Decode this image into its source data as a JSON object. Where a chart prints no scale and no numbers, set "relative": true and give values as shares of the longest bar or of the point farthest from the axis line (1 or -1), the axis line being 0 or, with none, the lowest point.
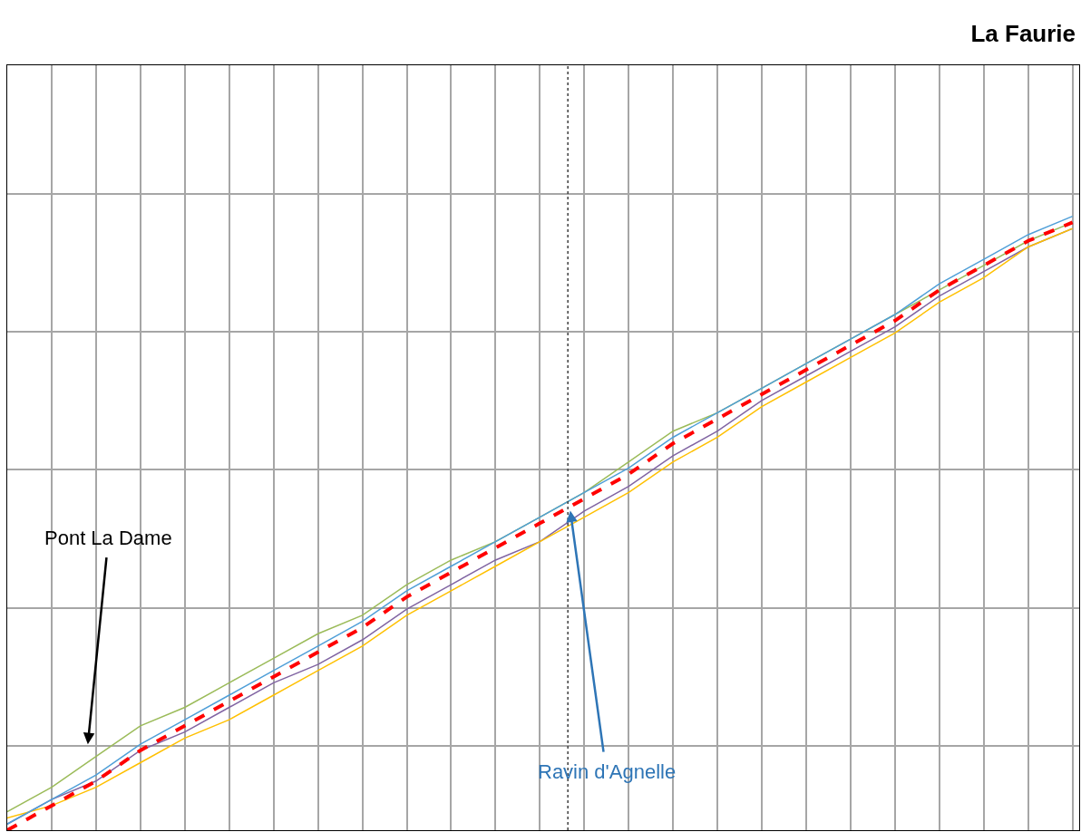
{
  "chart_data": {
    "type": "line",
    "title": "La Faurie",
    "relative": true,
    "categories": [
      null,
      null,
      null,
      null,
      null,
      null,
      null,
      null,
      null,
      null,
      null,
      null,
      null,
      null,
      null,
      null,
      null,
      null,
      null,
      null,
      null,
      null,
      null,
      null,
      null
    ],
    "series": [
      {
        "color": "#9bbb59",
        "values": [
          0.03,
          0.07,
          0.12,
          0.17,
          0.2,
          0.24,
          0.28,
          0.32,
          0.35,
          0.4,
          0.44,
          0.47,
          0.51,
          0.55,
          0.6,
          0.65,
          0.68,
          0.72,
          0.76,
          0.8,
          0.84,
          0.88,
          0.92,
          0.96,
          0.99
        ]
      },
      {
        "color": "#8064a2",
        "values": [
          0.01,
          0.05,
          0.08,
          0.13,
          0.16,
          0.2,
          0.24,
          0.27,
          0.31,
          0.36,
          0.4,
          0.44,
          0.47,
          0.52,
          0.56,
          0.61,
          0.65,
          0.7,
          0.74,
          0.78,
          0.82,
          0.87,
          0.91,
          0.95,
          0.98
        ]
      },
      {
        "color": "#ffc000",
        "values": [
          0.02,
          0.04,
          0.07,
          0.11,
          0.15,
          0.18,
          0.22,
          0.26,
          0.3,
          0.35,
          0.39,
          0.43,
          0.47,
          0.51,
          0.55,
          0.6,
          0.64,
          0.69,
          0.73,
          0.77,
          0.81,
          0.86,
          0.9,
          0.95,
          0.98
        ]
      },
      {
        "color": "#4f9fd8",
        "values": [
          0.01,
          0.05,
          0.09,
          0.14,
          0.18,
          0.22,
          0.26,
          0.3,
          0.34,
          0.39,
          0.43,
          0.47,
          0.51,
          0.55,
          0.59,
          0.64,
          0.68,
          0.72,
          0.76,
          0.8,
          0.84,
          0.89,
          0.93,
          0.97,
          1.0
        ]
      },
      {
        "color": "#ff0000",
        "line_style": "dashed",
        "values": [
          0,
          0.04,
          0.08,
          0.13,
          0.17,
          0.21,
          0.25,
          0.29,
          0.33,
          0.38,
          0.42,
          0.46,
          0.5,
          0.54,
          0.58,
          0.63,
          0.67,
          0.71,
          0.75,
          0.79,
          0.83,
          0.88,
          0.92,
          0.96,
          0.99
        ]
      }
    ],
    "annotations": [
      "Pont La Dame",
      "Ravin d'Agnelle"
    ],
    "grid": true,
    "tick_labels": false,
    "line_style": "solid"
  }
}
